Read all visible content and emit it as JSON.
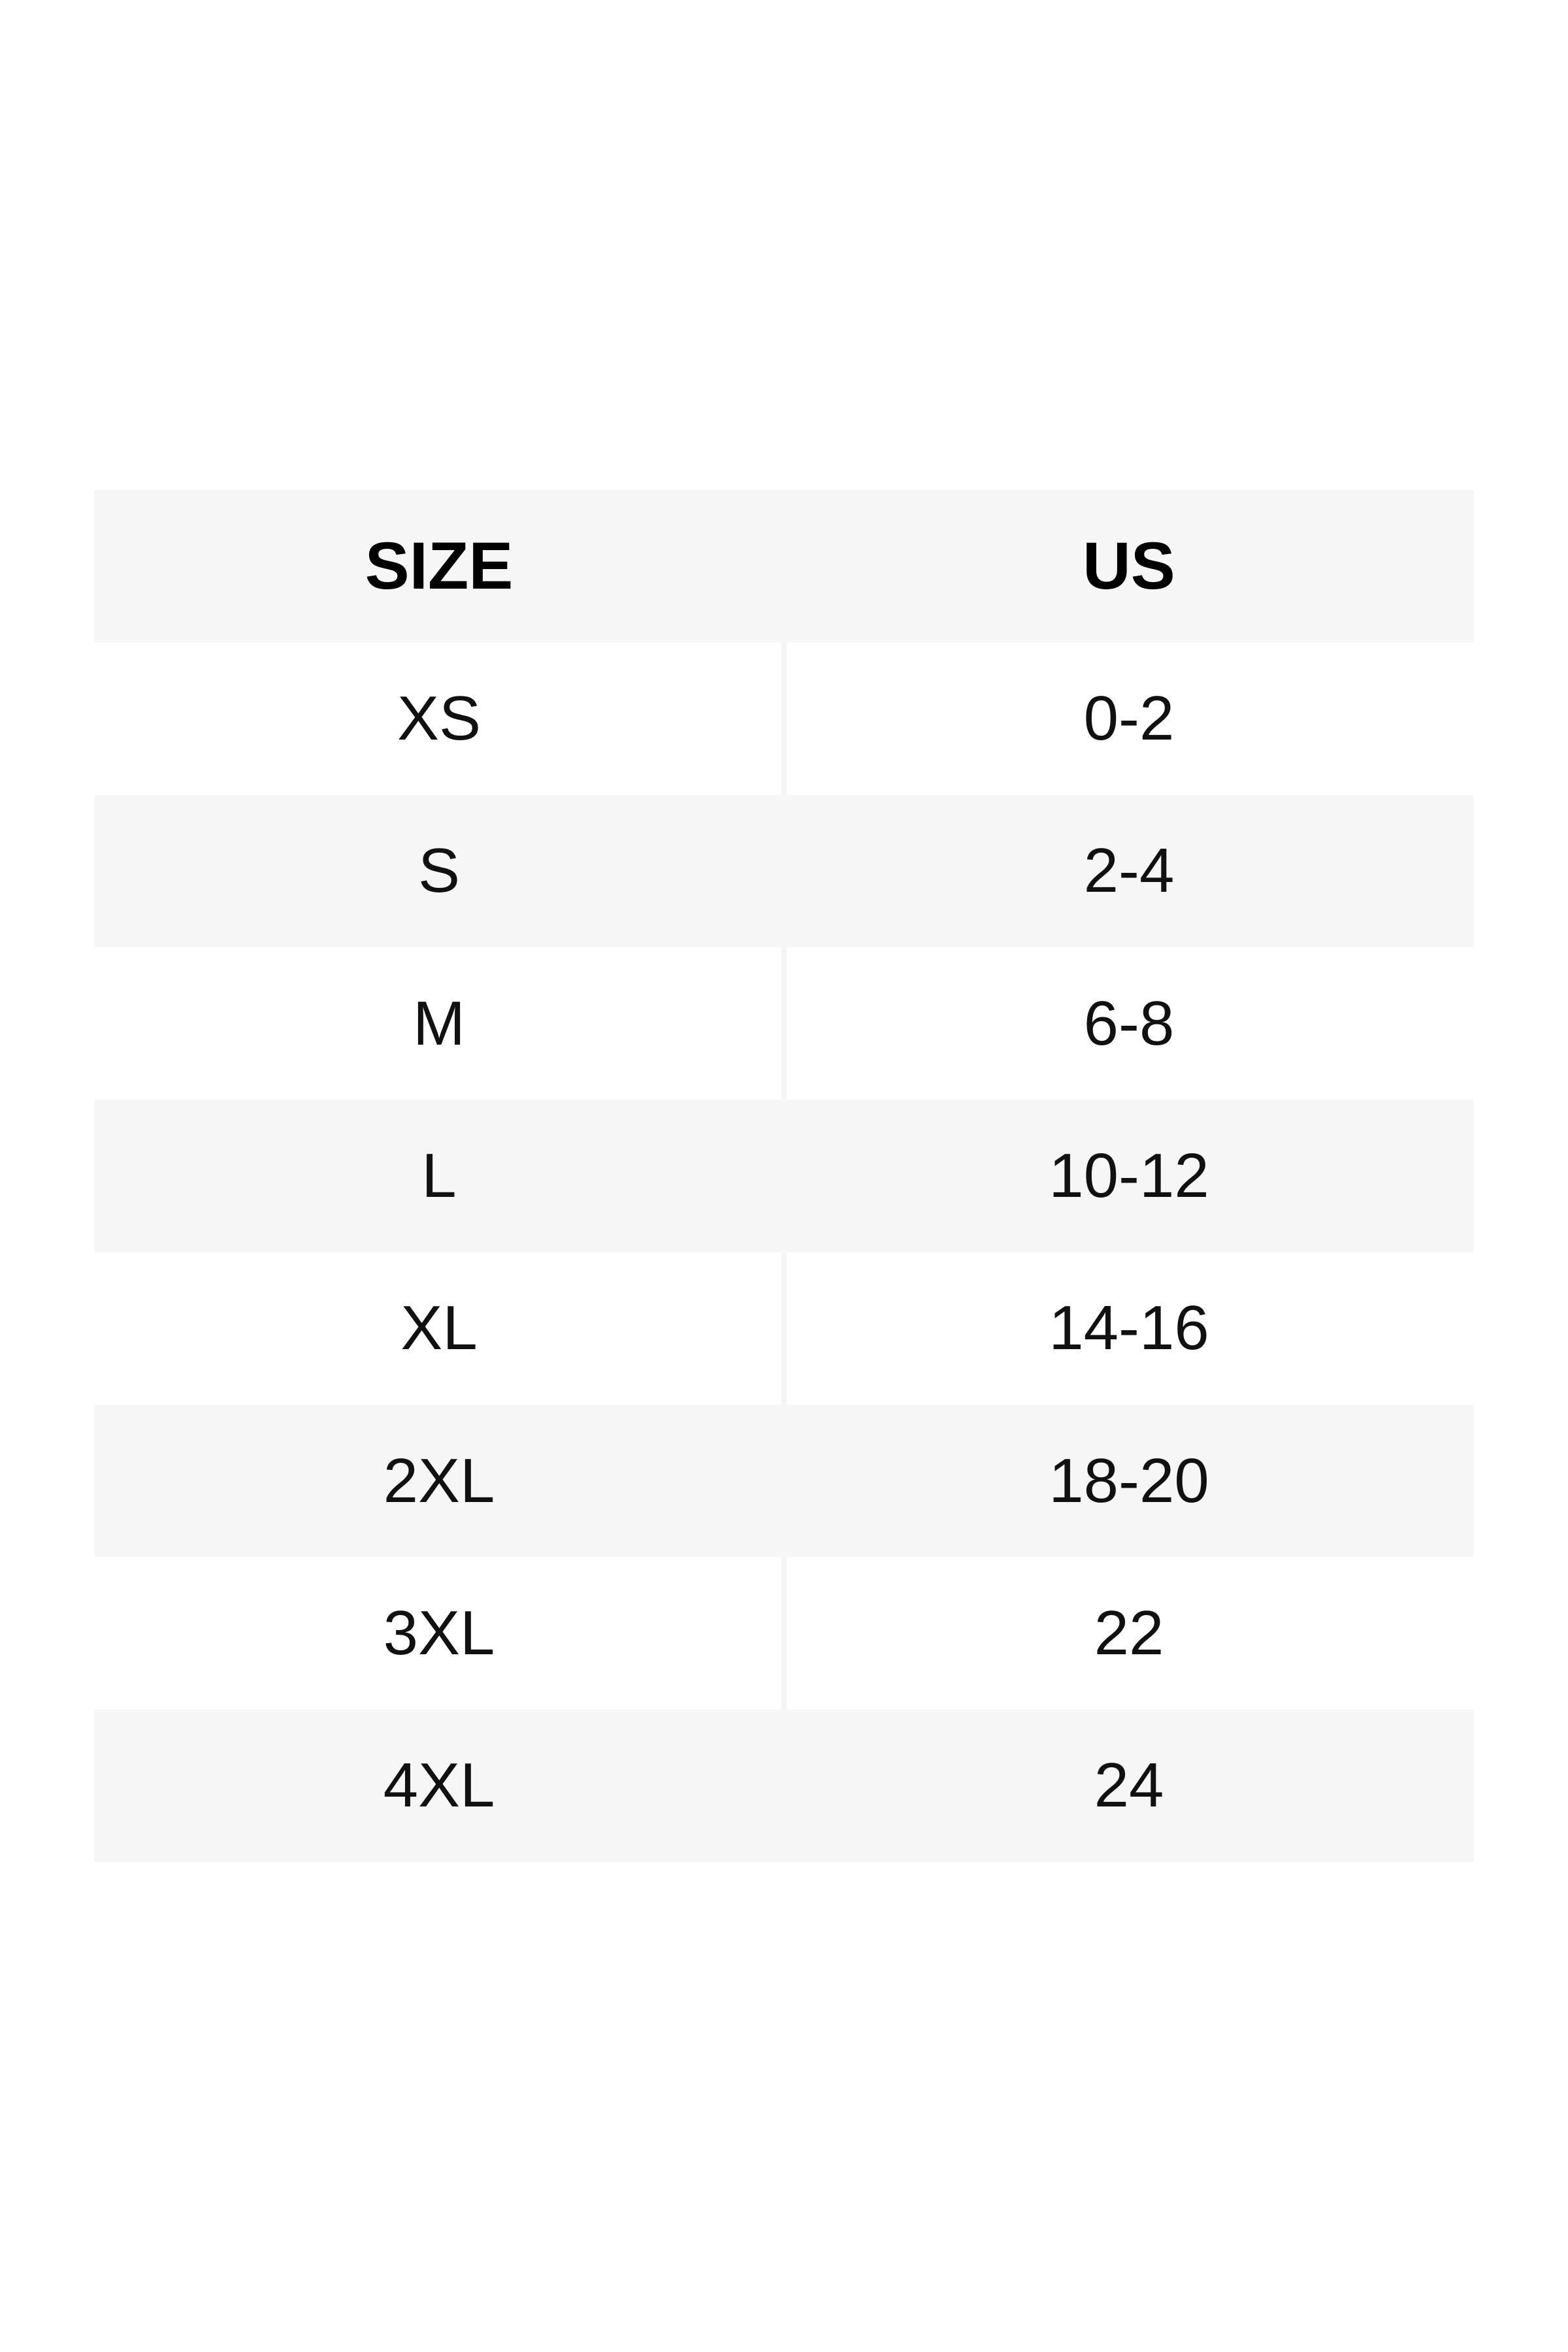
{
  "table": {
    "header": {
      "size": "SIZE",
      "us": "US"
    },
    "rows": [
      {
        "size": "XS",
        "us": "0-2"
      },
      {
        "size": "S",
        "us": "2-4"
      },
      {
        "size": "M",
        "us": "6-8"
      },
      {
        "size": "L",
        "us": "10-12"
      },
      {
        "size": "XL",
        "us": "14-16"
      },
      {
        "size": "2XL",
        "us": "18-20"
      },
      {
        "size": "3XL",
        "us": "22"
      },
      {
        "size": "4XL",
        "us": "24"
      }
    ]
  },
  "colors": {
    "shaded_row": "#f6f6f6",
    "column_divider": "#f4f4f4",
    "cell_text": "#111111",
    "header_text": "#000000",
    "page_background": "#ffffff"
  },
  "chart_data": {
    "type": "table",
    "title": "",
    "columns": [
      "SIZE",
      "US"
    ],
    "rows": [
      [
        "XS",
        "0-2"
      ],
      [
        "S",
        "2-4"
      ],
      [
        "M",
        "6-8"
      ],
      [
        "L",
        "10-12"
      ],
      [
        "XL",
        "14-16"
      ],
      [
        "2XL",
        "18-20"
      ],
      [
        "3XL",
        "22"
      ],
      [
        "4XL",
        "24"
      ]
    ],
    "layout": {
      "header_background": "#f6f6f6",
      "row_striping": "white / #f6f6f6 alternating, starting white",
      "divider_visible_on": "white rows only"
    }
  }
}
